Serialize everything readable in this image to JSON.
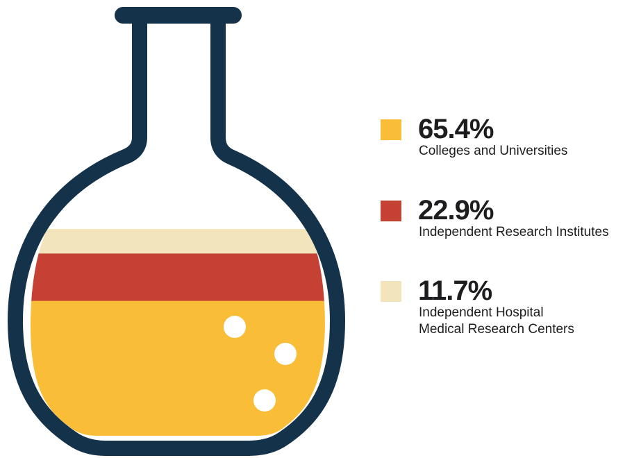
{
  "chart_data": {
    "type": "flask",
    "categories": [
      "Colleges and Universities",
      "Independent Research Institutes",
      "Independent Hospital\nMedical Research Centers"
    ],
    "values": [
      65.4,
      22.9,
      11.7
    ],
    "value_labels": [
      "65.4%",
      "22.9%",
      "11.7%"
    ],
    "colors": [
      "#f9bd38",
      "#c44133",
      "#f2e4bb"
    ]
  }
}
